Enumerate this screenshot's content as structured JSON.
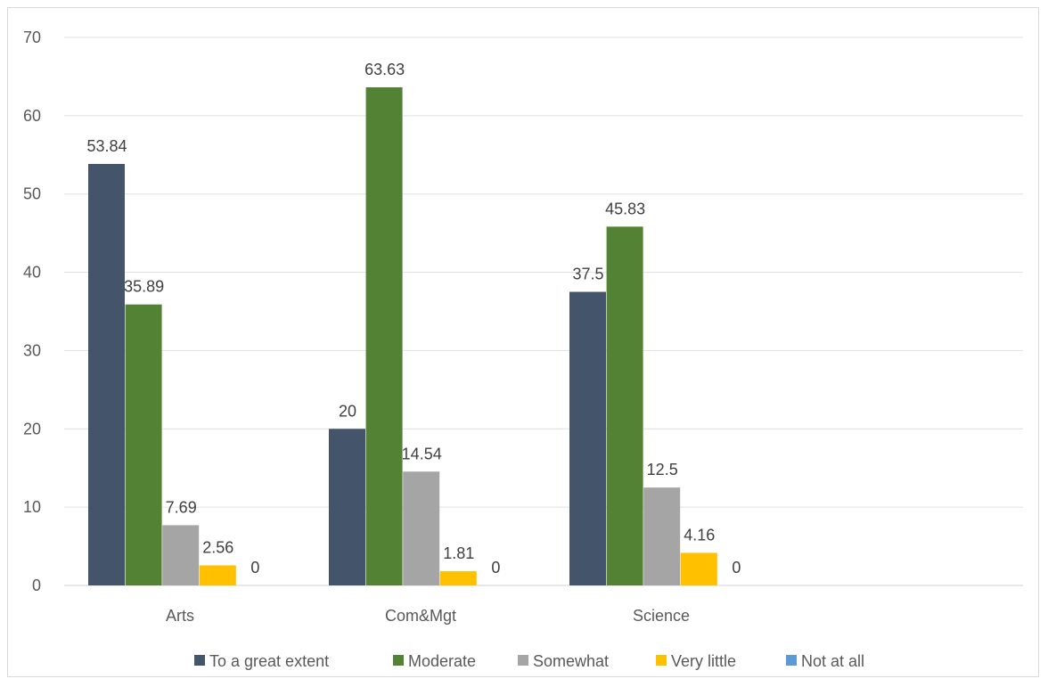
{
  "chart_data": {
    "type": "bar",
    "categories": [
      "Arts",
      "Com&Mgt",
      "Science"
    ],
    "series": [
      {
        "name": "To a great extent",
        "color": "#44546a",
        "values": [
          53.84,
          20,
          37.5
        ],
        "labels": [
          "53.84",
          "20",
          "37.5"
        ]
      },
      {
        "name": "Moderate",
        "color": "#548235",
        "values": [
          35.89,
          63.63,
          45.83
        ],
        "labels": [
          "35.89",
          "63.63",
          "45.83"
        ]
      },
      {
        "name": "Somewhat",
        "color": "#a5a5a5",
        "values": [
          7.69,
          14.54,
          12.5
        ],
        "labels": [
          "7.69",
          "14.54",
          "12.5"
        ]
      },
      {
        "name": "Very little",
        "color": "#ffc000",
        "values": [
          2.56,
          1.81,
          4.16
        ],
        "labels": [
          "2.56",
          "1.81",
          "4.16"
        ]
      },
      {
        "name": "Not at all",
        "color": "#5b9bd5",
        "values": [
          0,
          0,
          0
        ],
        "labels": [
          "0",
          "0",
          "0"
        ]
      }
    ],
    "yticks": [
      "0",
      "10",
      "20",
      "30",
      "40",
      "50",
      "60",
      "70"
    ],
    "ylim": [
      0,
      70
    ],
    "grid": true,
    "legend": "bottom"
  }
}
